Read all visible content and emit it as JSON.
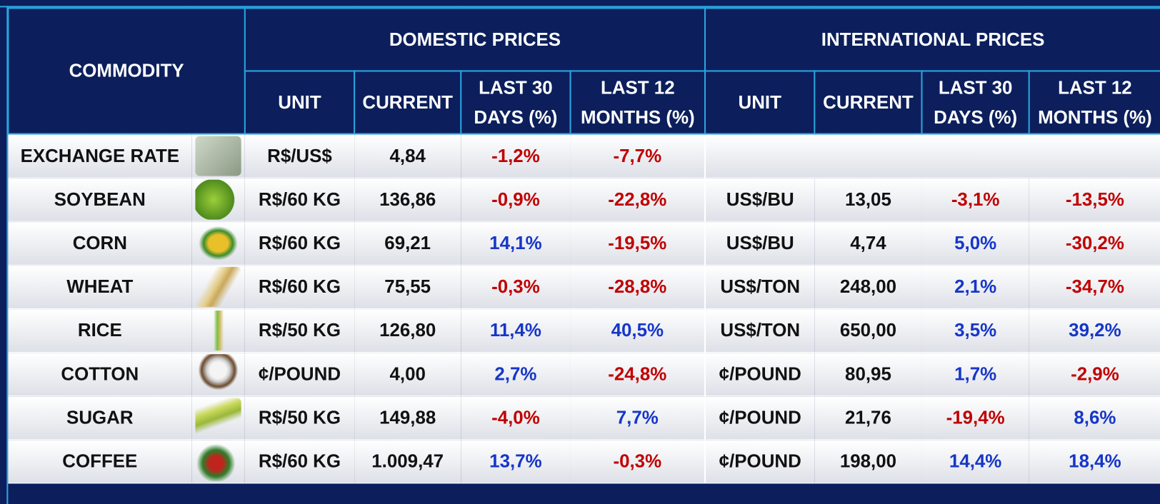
{
  "table": {
    "header": {
      "commodity": "COMMODITY",
      "domestic": "DOMESTIC PRICES",
      "international": "INTERNATIONAL PRICES"
    },
    "columns": [
      "UNIT",
      "CURRENT",
      "LAST 30 DAYS (%)",
      "LAST 12 MONTHS (%)",
      "UNIT",
      "CURRENT",
      "LAST 30 DAYS (%)",
      "LAST 12 MONTHS (%)"
    ],
    "rows": [
      {
        "commodity": "EXCHANGE RATE",
        "domestic": [
          "R$/US$",
          "4,84",
          "-1,2%",
          "-7,7%"
        ]
      },
      {
        "commodity": "SOYBEAN",
        "domestic": [
          "R$/60 KG",
          "136,86",
          "-0,9%",
          "-22,8%"
        ],
        "international": [
          "US$/BU",
          "13,05",
          "-3,1%",
          "-13,5%"
        ]
      },
      {
        "commodity": "CORN",
        "domestic": [
          "R$/60 KG",
          "69,21",
          "14,1%",
          "-19,5%"
        ],
        "international": [
          "US$/BU",
          "4,74",
          "5,0%",
          "-30,2%"
        ]
      },
      {
        "commodity": "WHEAT",
        "domestic": [
          "R$/60 KG",
          "75,55",
          "-0,3%",
          "-28,8%"
        ],
        "international": [
          "US$/TON",
          "248,00",
          "2,1%",
          "-34,7%"
        ]
      },
      {
        "commodity": "RICE",
        "domestic": [
          "R$/50 KG",
          "126,80",
          "11,4%",
          "40,5%"
        ],
        "international": [
          "US$/TON",
          "650,00",
          "3,5%",
          "39,2%"
        ]
      },
      {
        "commodity": "COTTON",
        "domestic": [
          "¢/POUND",
          "4,00",
          "2,7%",
          "-24,8%"
        ],
        "international": [
          "¢/POUND",
          "80,95",
          "1,7%",
          "-2,9%"
        ]
      },
      {
        "commodity": "SUGAR",
        "domestic": [
          "R$/50 KG",
          "149,88",
          "-4,0%",
          "7,7%"
        ],
        "international": [
          "¢/POUND",
          "21,76",
          "-19,4%",
          "8,6%"
        ]
      },
      {
        "commodity": "COFFEE",
        "domestic": [
          "R$/60 KG",
          "1.009,47",
          "13,7%",
          "-0,3%"
        ],
        "international": [
          "¢/POUND",
          "198,00",
          "14,4%",
          "18,4%"
        ]
      }
    ]
  }
}
